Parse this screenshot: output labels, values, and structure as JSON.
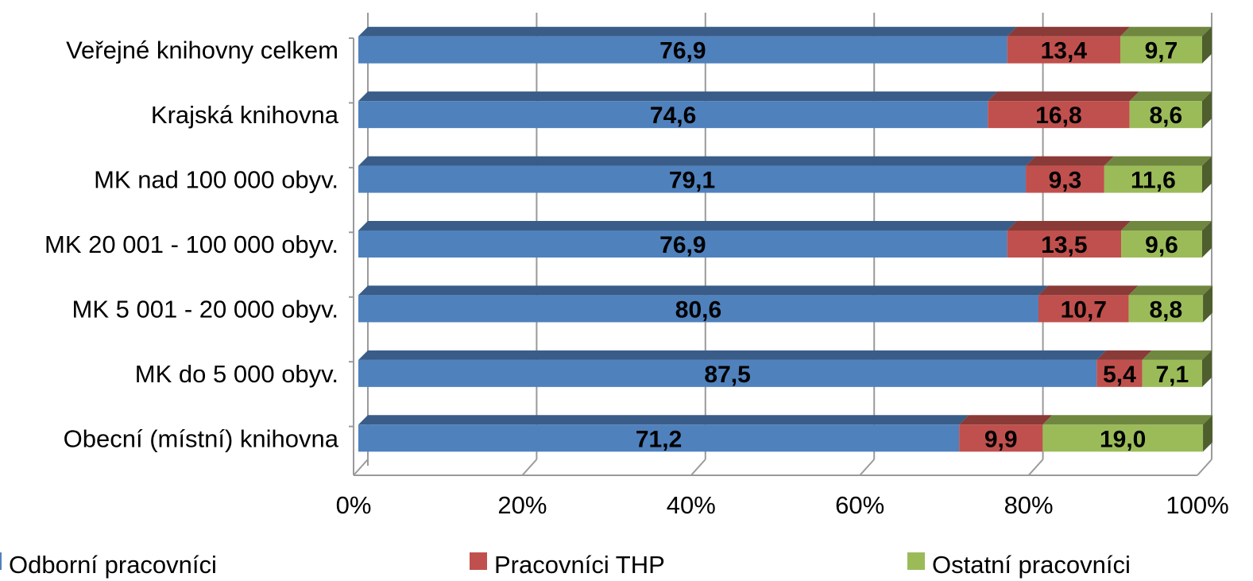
{
  "chart_data": {
    "type": "bar",
    "orientation": "horizontal",
    "stacked": "percent",
    "three_d": true,
    "categories": [
      "Veřejné knihovny celkem",
      "Krajská knihovna",
      "MK nad 100 000 obyv.",
      "MK 20 001 - 100 000 obyv.",
      "MK  5 001 - 20 000 obyv.",
      "MK do 5 000 obyv.",
      "Obecní (místní) knihovna"
    ],
    "series": [
      {
        "name": "Odborní pracovníci",
        "color": "#4f81bd",
        "values": [
          76.9,
          74.6,
          79.1,
          76.9,
          80.6,
          87.5,
          71.2
        ],
        "labels": [
          "76,9",
          "74,6",
          "79,1",
          "76,9",
          "80,6",
          "87,5",
          "71,2"
        ]
      },
      {
        "name": "Pracovníci THP",
        "color": "#c0504d",
        "values": [
          13.4,
          16.8,
          9.3,
          13.5,
          10.7,
          5.4,
          9.9
        ],
        "labels": [
          "13,4",
          "16,8",
          "9,3",
          "13,5",
          "10,7",
          "5,4",
          "9,9"
        ]
      },
      {
        "name": "Ostatní pracovníci",
        "color": "#9bbb59",
        "values": [
          9.7,
          8.6,
          11.6,
          9.6,
          8.8,
          7.1,
          19.0
        ],
        "labels": [
          "9,7",
          "8,6",
          "11,6",
          "9,6",
          "8,8",
          "7,1",
          "19,0"
        ]
      }
    ],
    "x_ticks": [
      "0%",
      "20%",
      "40%",
      "60%",
      "80%",
      "100%"
    ],
    "xlim": [
      0,
      100
    ],
    "legend_position": "bottom",
    "grid": true,
    "title": "",
    "xlabel": "",
    "ylabel": ""
  }
}
